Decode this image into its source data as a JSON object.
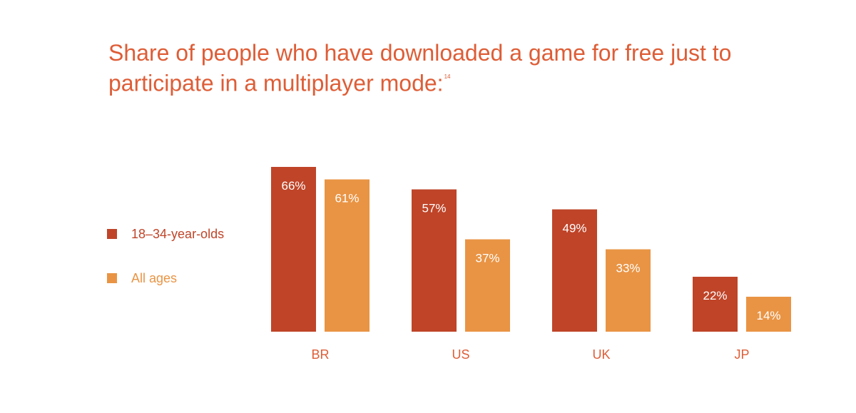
{
  "title": "Share of people who have downloaded a game for free just to participate in a multiplayer mode:",
  "footnote": "14",
  "colors": {
    "title": "#de5d36",
    "series_young": "#bf4428",
    "series_all": "#e99444",
    "category_label": "#de5d36"
  },
  "legend": [
    {
      "label": "18–34-year-olds",
      "color": "#bf4428",
      "text_color": "#bf4428"
    },
    {
      "label": "All ages",
      "color": "#e99444",
      "text_color": "#e99444"
    }
  ],
  "chart_data": {
    "type": "bar",
    "title": "Share of people who have downloaded a game for free just to participate in a multiplayer mode:",
    "categories": [
      "BR",
      "US",
      "UK",
      "JP"
    ],
    "series": [
      {
        "name": "18–34-year-olds",
        "values": [
          66,
          57,
          49,
          22
        ],
        "labels": [
          "66%",
          "57%",
          "49%",
          "22%"
        ]
      },
      {
        "name": "All ages",
        "values": [
          61,
          37,
          33,
          14
        ],
        "labels": [
          "61%",
          "37%",
          "33%",
          "14%"
        ]
      }
    ],
    "unit": "%",
    "ylim": [
      0,
      100
    ],
    "grid": false,
    "legend_position": "left"
  }
}
